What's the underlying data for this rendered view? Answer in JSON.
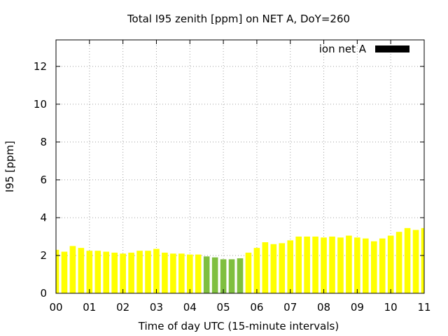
{
  "chart_data": {
    "type": "bar",
    "title": "Total I95 zenith [ppm] on NET A, DoY=260",
    "xlabel": "Time of day UTC (15-minute intervals)",
    "ylabel": "I95 [ppm]",
    "xlim": [
      0,
      11
    ],
    "ylim": [
      0,
      13.4
    ],
    "grid": true,
    "legend": {
      "position": "top-right",
      "entries": [
        {
          "label": "ion net A",
          "color": "#000000"
        }
      ]
    },
    "x_ticks": [
      {
        "value": 0,
        "label": "00"
      },
      {
        "value": 1,
        "label": "01"
      },
      {
        "value": 2,
        "label": "02"
      },
      {
        "value": 3,
        "label": "03"
      },
      {
        "value": 4,
        "label": "04"
      },
      {
        "value": 5,
        "label": "05"
      },
      {
        "value": 6,
        "label": "06"
      },
      {
        "value": 7,
        "label": "07"
      },
      {
        "value": 8,
        "label": "08"
      },
      {
        "value": 9,
        "label": "09"
      },
      {
        "value": 10,
        "label": "10"
      },
      {
        "value": 11,
        "label": "11"
      }
    ],
    "y_ticks": [
      {
        "value": 0,
        "label": "0"
      },
      {
        "value": 2,
        "label": "2"
      },
      {
        "value": 4,
        "label": "4"
      },
      {
        "value": 6,
        "label": "6"
      },
      {
        "value": 8,
        "label": "8"
      },
      {
        "value": 10,
        "label": "10"
      },
      {
        "value": 12,
        "label": "12"
      }
    ],
    "bar_width": 0.18,
    "bars": [
      {
        "x": 0.0,
        "value": 2.3,
        "color": "#ffff00"
      },
      {
        "x": 0.25,
        "value": 2.2,
        "color": "#ffff00"
      },
      {
        "x": 0.5,
        "value": 2.5,
        "color": "#ffff00"
      },
      {
        "x": 0.75,
        "value": 2.4,
        "color": "#ffff00"
      },
      {
        "x": 1.0,
        "value": 2.25,
        "color": "#ffff00"
      },
      {
        "x": 1.25,
        "value": 2.25,
        "color": "#ffff00"
      },
      {
        "x": 1.5,
        "value": 2.2,
        "color": "#ffff00"
      },
      {
        "x": 1.75,
        "value": 2.15,
        "color": "#ffff00"
      },
      {
        "x": 2.0,
        "value": 2.1,
        "color": "#ffff00"
      },
      {
        "x": 2.25,
        "value": 2.15,
        "color": "#ffff00"
      },
      {
        "x": 2.5,
        "value": 2.25,
        "color": "#ffff00"
      },
      {
        "x": 2.75,
        "value": 2.25,
        "color": "#ffff00"
      },
      {
        "x": 3.0,
        "value": 2.35,
        "color": "#ffff00"
      },
      {
        "x": 3.25,
        "value": 2.15,
        "color": "#ffff00"
      },
      {
        "x": 3.5,
        "value": 2.1,
        "color": "#ffff00"
      },
      {
        "x": 3.75,
        "value": 2.1,
        "color": "#ffff00"
      },
      {
        "x": 4.0,
        "value": 2.05,
        "color": "#ffff00"
      },
      {
        "x": 4.25,
        "value": 2.05,
        "color": "#ffff00"
      },
      {
        "x": 4.5,
        "value": 1.95,
        "color": "#7fbf3f"
      },
      {
        "x": 4.75,
        "value": 1.9,
        "color": "#7fbf3f"
      },
      {
        "x": 5.0,
        "value": 1.8,
        "color": "#7fbf3f"
      },
      {
        "x": 5.25,
        "value": 1.8,
        "color": "#7fbf3f"
      },
      {
        "x": 5.5,
        "value": 1.85,
        "color": "#7fbf3f"
      },
      {
        "x": 5.75,
        "value": 2.15,
        "color": "#ffff00"
      },
      {
        "x": 6.0,
        "value": 2.4,
        "color": "#ffff00"
      },
      {
        "x": 6.25,
        "value": 2.7,
        "color": "#ffff00"
      },
      {
        "x": 6.5,
        "value": 2.6,
        "color": "#ffff00"
      },
      {
        "x": 6.75,
        "value": 2.65,
        "color": "#ffff00"
      },
      {
        "x": 7.0,
        "value": 2.8,
        "color": "#ffff00"
      },
      {
        "x": 7.25,
        "value": 3.0,
        "color": "#ffff00"
      },
      {
        "x": 7.5,
        "value": 3.0,
        "color": "#ffff00"
      },
      {
        "x": 7.75,
        "value": 3.0,
        "color": "#ffff00"
      },
      {
        "x": 8.0,
        "value": 2.95,
        "color": "#ffff00"
      },
      {
        "x": 8.25,
        "value": 3.0,
        "color": "#ffff00"
      },
      {
        "x": 8.5,
        "value": 2.95,
        "color": "#ffff00"
      },
      {
        "x": 8.75,
        "value": 3.05,
        "color": "#ffff00"
      },
      {
        "x": 9.0,
        "value": 2.95,
        "color": "#ffff00"
      },
      {
        "x": 9.25,
        "value": 2.9,
        "color": "#ffff00"
      },
      {
        "x": 9.5,
        "value": 2.75,
        "color": "#ffff00"
      },
      {
        "x": 9.75,
        "value": 2.9,
        "color": "#ffff00"
      },
      {
        "x": 10.0,
        "value": 3.05,
        "color": "#ffff00"
      },
      {
        "x": 10.25,
        "value": 3.25,
        "color": "#ffff00"
      },
      {
        "x": 10.5,
        "value": 3.45,
        "color": "#ffff00"
      },
      {
        "x": 10.75,
        "value": 3.35,
        "color": "#ffff00"
      },
      {
        "x": 11.0,
        "value": 3.45,
        "color": "#ffff00"
      }
    ]
  }
}
